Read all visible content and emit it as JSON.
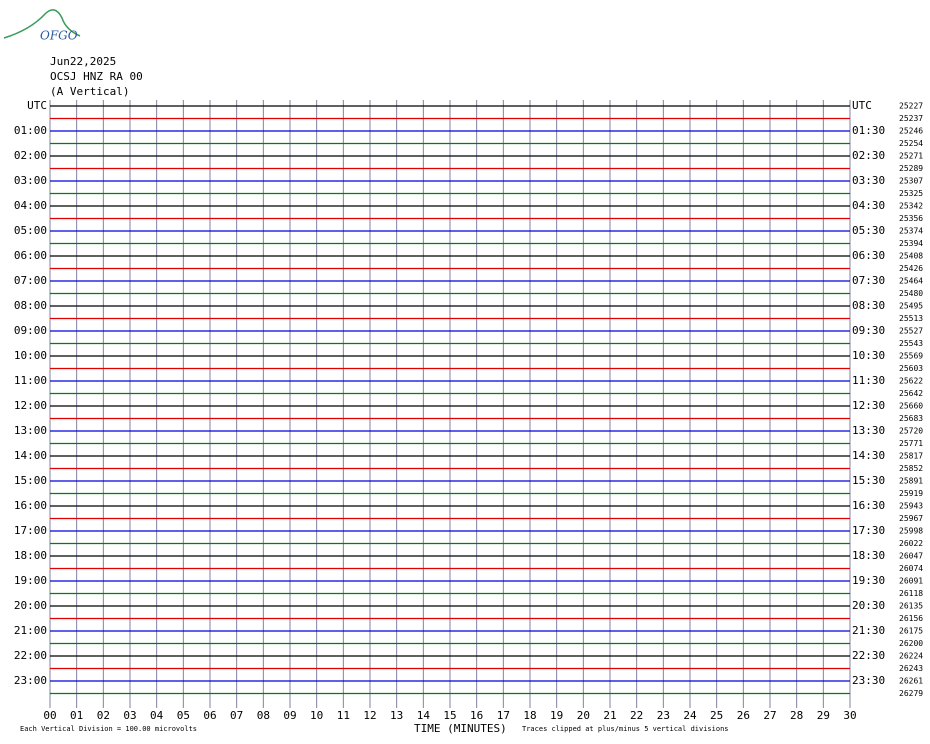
{
  "logo": "OFGO",
  "header": {
    "date": "Jun22,2025",
    "station": "OCSJ HNZ RA 00",
    "component": "(A Vertical)"
  },
  "left_labels": [
    "UTC",
    "01:00",
    "02:00",
    "03:00",
    "04:00",
    "05:00",
    "06:00",
    "07:00",
    "08:00",
    "09:00",
    "10:00",
    "11:00",
    "12:00",
    "13:00",
    "14:00",
    "15:00",
    "16:00",
    "17:00",
    "18:00",
    "19:00",
    "20:00",
    "21:00",
    "22:00",
    "23:00"
  ],
  "right_labels": [
    "UTC",
    "01:30",
    "02:30",
    "03:30",
    "04:30",
    "05:30",
    "06:30",
    "07:30",
    "08:30",
    "09:30",
    "10:30",
    "11:30",
    "12:30",
    "13:30",
    "14:30",
    "15:30",
    "16:30",
    "17:30",
    "18:30",
    "19:30",
    "20:30",
    "21:30",
    "22:30",
    "23:30"
  ],
  "trace_counts": [
    25227,
    25237,
    25246,
    25254,
    25271,
    25289,
    25307,
    25325,
    25342,
    25356,
    25374,
    25394,
    25408,
    25426,
    25464,
    25480,
    25495,
    25513,
    25527,
    25543,
    25569,
    25603,
    25622,
    25642,
    25660,
    25683,
    25720,
    25771,
    25817,
    25852,
    25891,
    25919,
    25943,
    25967,
    25998,
    26022,
    26047,
    26074,
    26091,
    26118,
    26135,
    26156,
    26175,
    26200,
    26224,
    26243,
    26261,
    26279
  ],
  "trace_colors": [
    "#000000",
    "#e00000",
    "#0000e0",
    "#008000"
  ],
  "xaxis": {
    "title": "TIME (MINUTES)",
    "xlim": [
      0,
      30
    ],
    "xticks": [
      {
        "value": 0,
        "label": "00"
      },
      {
        "value": 1,
        "label": "01"
      },
      {
        "value": 2,
        "label": "02"
      },
      {
        "value": 3,
        "label": "03"
      },
      {
        "value": 4,
        "label": "04"
      },
      {
        "value": 5,
        "label": "05"
      },
      {
        "value": 6,
        "label": "06"
      },
      {
        "value": 7,
        "label": "07"
      },
      {
        "value": 8,
        "label": "08"
      },
      {
        "value": 9,
        "label": "09"
      },
      10,
      11,
      12,
      13,
      14,
      15,
      16,
      17,
      18,
      19,
      20,
      21,
      22,
      23,
      24,
      25,
      26,
      27,
      28,
      29,
      30
    ]
  },
  "footer": {
    "scale": "Each Vertical Division =  100.00 microvolts",
    "clip": "Traces clipped at plus/minus 5 vertical divisions"
  }
}
